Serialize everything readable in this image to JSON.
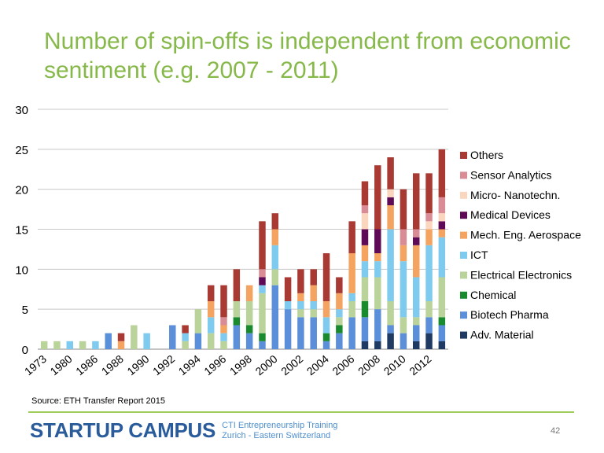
{
  "slide": {
    "title": "Number of spin-offs is independent from economic sentiment (e.g. 2007 - 2011)",
    "source": "Source: ETH Transfer Report 2015",
    "logo_main": "STARTUP CAMPUS",
    "logo_sub_1": "CTI Entrepreneurship Training",
    "logo_sub_2": "Zurich - Eastern Switzerland",
    "page_number": "42"
  },
  "chart_data": {
    "type": "bar",
    "stacked": true,
    "title": "",
    "xlabel": "",
    "ylabel": "",
    "ylim": [
      0,
      30
    ],
    "yticks": [
      0,
      5,
      10,
      15,
      20,
      25,
      30
    ],
    "grid": true,
    "legend_position": "right",
    "categories": [
      "1973",
      "1976",
      "1980",
      "1982",
      "1986",
      "1987",
      "1988",
      "1989",
      "1990",
      "1991",
      "1992",
      "1993",
      "1994",
      "1995",
      "1996",
      "1997",
      "1998",
      "1999",
      "2000",
      "2001",
      "2002",
      "2003",
      "2004",
      "2005",
      "2006",
      "2007",
      "2008",
      "2009",
      "2010",
      "2011",
      "2012",
      "2013"
    ],
    "tick_labels": [
      "1973",
      "1980",
      "1986",
      "1988",
      "1990",
      "1992",
      "1994",
      "1996",
      "1998",
      "2000",
      "2002",
      "2004",
      "2006",
      "2008",
      "2010",
      "2012"
    ],
    "series": [
      {
        "name": "Adv. Material",
        "color": "#1f3a63",
        "values": [
          0,
          0,
          0,
          0,
          0,
          0,
          0,
          0,
          0,
          0,
          0,
          0,
          0,
          0,
          0,
          0,
          0,
          0,
          0,
          0,
          0,
          0,
          0,
          0,
          0,
          1,
          1,
          2,
          0,
          1,
          2,
          1
        ]
      },
      {
        "name": "Biotech Pharma",
        "color": "#5b8fd9",
        "values": [
          0,
          0,
          0,
          0,
          0,
          2,
          0,
          0,
          0,
          0,
          3,
          0,
          2,
          0,
          0,
          3,
          2,
          1,
          8,
          5,
          4,
          4,
          1,
          2,
          4,
          3,
          4,
          1,
          2,
          2,
          2,
          2
        ]
      },
      {
        "name": "Chemical",
        "color": "#1a8a2e",
        "values": [
          0,
          0,
          0,
          0,
          0,
          0,
          0,
          0,
          0,
          0,
          0,
          0,
          0,
          0,
          0,
          1,
          1,
          1,
          0,
          0,
          0,
          0,
          1,
          1,
          0,
          2,
          0,
          0,
          0,
          0,
          0,
          1
        ]
      },
      {
        "name": "Electrical Electronics",
        "color": "#b9d39a",
        "values": [
          1,
          1,
          0,
          1,
          0,
          0,
          0,
          3,
          0,
          0,
          0,
          1,
          3,
          2,
          1,
          2,
          3,
          5,
          2,
          0,
          1,
          1,
          0,
          1,
          2,
          3,
          4,
          3,
          2,
          1,
          2,
          5
        ]
      },
      {
        "name": "ICT",
        "color": "#7fcbef",
        "values": [
          0,
          0,
          1,
          0,
          1,
          0,
          0,
          0,
          2,
          0,
          0,
          1,
          0,
          2,
          1,
          0,
          0,
          1,
          3,
          1,
          1,
          1,
          2,
          1,
          1,
          2,
          2,
          9,
          7,
          5,
          7,
          5
        ]
      },
      {
        "name": "Mech. Eng. Aerospace",
        "color": "#f4a460",
        "values": [
          0,
          0,
          0,
          0,
          0,
          0,
          1,
          0,
          0,
          0,
          0,
          0,
          0,
          2,
          1,
          0,
          2,
          0,
          2,
          0,
          1,
          2,
          2,
          2,
          5,
          2,
          1,
          3,
          2,
          4,
          2,
          1
        ]
      },
      {
        "name": "Medical Devices",
        "color": "#5e0a57",
        "values": [
          0,
          0,
          0,
          0,
          0,
          0,
          0,
          0,
          0,
          0,
          0,
          0,
          0,
          0,
          0,
          0,
          0,
          1,
          0,
          0,
          0,
          0,
          0,
          0,
          0,
          2,
          3,
          1,
          0,
          1,
          0,
          1
        ]
      },
      {
        "name": "Micro- Nanotechn.",
        "color": "#fbd6bf",
        "values": [
          0,
          0,
          0,
          0,
          0,
          0,
          0,
          0,
          0,
          0,
          0,
          0,
          0,
          0,
          0,
          0,
          0,
          0,
          0,
          0,
          0,
          0,
          0,
          0,
          0,
          2,
          0,
          1,
          0,
          0,
          1,
          1
        ]
      },
      {
        "name": "Sensor Analytics",
        "color": "#d98c95",
        "values": [
          0,
          0,
          0,
          0,
          0,
          0,
          0,
          0,
          0,
          0,
          0,
          0,
          0,
          0,
          1,
          0,
          0,
          1,
          0,
          0,
          0,
          0,
          0,
          0,
          0,
          1,
          0,
          0,
          2,
          1,
          1,
          2
        ]
      },
      {
        "name": "Others",
        "color": "#a83a33",
        "values": [
          0,
          0,
          0,
          0,
          0,
          0,
          1,
          0,
          0,
          0,
          0,
          1,
          0,
          2,
          4,
          4,
          0,
          6,
          2,
          3,
          3,
          2,
          6,
          2,
          4,
          3,
          8,
          4,
          5,
          7,
          5,
          6
        ]
      }
    ]
  }
}
